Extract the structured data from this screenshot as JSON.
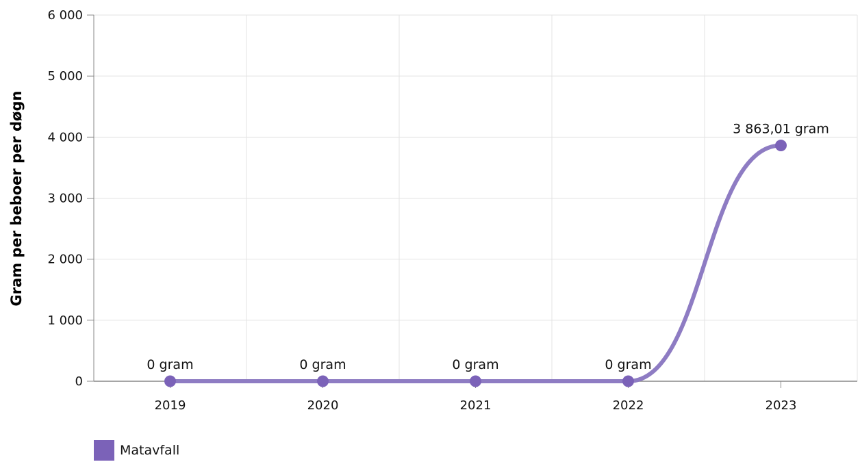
{
  "chart_data": {
    "type": "line",
    "categories": [
      "2019",
      "2020",
      "2021",
      "2022",
      "2023"
    ],
    "series": [
      {
        "name": "Matavfall",
        "values": [
          0,
          0,
          0,
          0,
          3863.01
        ],
        "data_labels": [
          "0 gram",
          "0 gram",
          "0 gram",
          "0 gram",
          "3 863,01 gram"
        ],
        "color": "#8e7cc3"
      }
    ],
    "ylabel": "Gram per beboer per døgn",
    "ylim": [
      0,
      6000
    ],
    "yticks": [
      0,
      1000,
      2000,
      3000,
      4000,
      5000,
      6000
    ],
    "ytick_labels": [
      "0",
      "1 000",
      "2 000",
      "3 000",
      "4 000",
      "5 000",
      "6 000"
    ],
    "grid": true,
    "smooth": true,
    "legend_position": "bottom-left",
    "marker_color": "#7b62b8",
    "legend_color": "#7b62b8"
  }
}
